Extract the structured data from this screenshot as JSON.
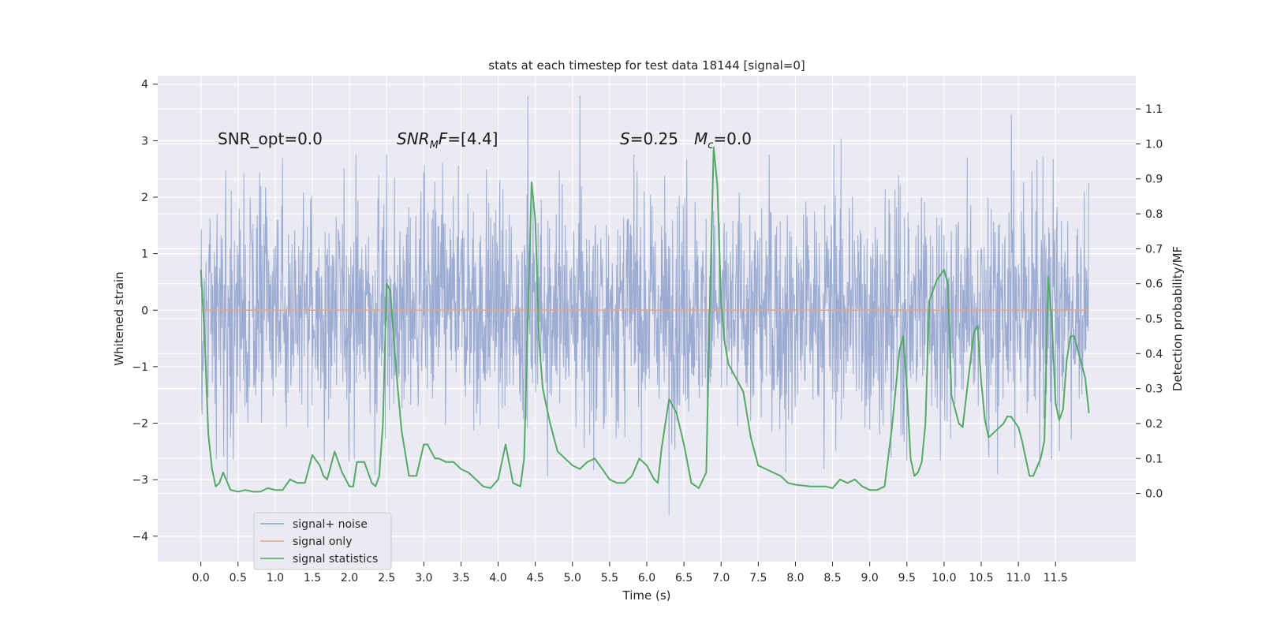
{
  "chart_data": {
    "type": "line",
    "title": "stats at each timestep for test data 18144 [signal=0]",
    "xlabel": "Time (s)",
    "ylabel": "Whitened strain",
    "ylabel_right": "Detection probability/MF",
    "xlim": [
      -0.58,
      12.58
    ],
    "ylim": [
      -4.45,
      4.15
    ],
    "ylim_right": [
      -0.195,
      1.195
    ],
    "x_ticks": [
      0.0,
      0.5,
      1.0,
      1.5,
      2.0,
      2.5,
      3.0,
      3.5,
      4.0,
      4.5,
      5.0,
      5.5,
      6.0,
      6.5,
      7.0,
      7.5,
      8.0,
      8.5,
      9.0,
      9.5,
      10.0,
      10.5,
      11.0,
      11.5
    ],
    "x_tick_labels": [
      "0.0",
      "0.5",
      "1.0",
      "1.5",
      "2.0",
      "2.5",
      "3.0",
      "3.5",
      "4.0",
      "4.5",
      "5.0",
      "5.5",
      "6.0",
      "6.5",
      "7.0",
      "7.5",
      "8.0",
      "8.5",
      "9.0",
      "9.5",
      "10.0",
      "10.5",
      "11.0",
      "11.5"
    ],
    "y_ticks": [
      -4,
      -3,
      -2,
      -1,
      0,
      1,
      2,
      3,
      4
    ],
    "y_tick_labels": [
      "−4",
      "−3",
      "−2",
      "−1",
      "0",
      "1",
      "2",
      "3",
      "4"
    ],
    "y2_ticks": [
      0.0,
      0.1,
      0.2,
      0.3,
      0.4,
      0.5,
      0.6,
      0.7,
      0.8,
      0.9,
      1.0,
      1.1
    ],
    "y2_tick_labels": [
      "0.0",
      "0.1",
      "0.2",
      "0.3",
      "0.4",
      "0.5",
      "0.6",
      "0.7",
      "0.8",
      "0.9",
      "1.0",
      "1.1"
    ],
    "grid": true,
    "legend_position": "lower-left",
    "annotations": [
      {
        "text": "SNR_opt=0.0",
        "x": 0.2,
        "y": 3.0
      },
      {
        "text": "SNR_MF=[4.4]",
        "x": 2.6,
        "y": 3.0
      },
      {
        "text": "S=0.25",
        "x": 5.6,
        "y": 3.0
      },
      {
        "text": "M_c=0.0",
        "x": 6.6,
        "y": 3.0
      }
    ],
    "series": [
      {
        "name": "signal+ noise",
        "color": "#8da0cb",
        "axis": "left",
        "t_start": 0.0,
        "t_end": 11.95,
        "sigma": 1.0,
        "y_min": -4.1,
        "y_max": 3.8
      },
      {
        "name": "signal only",
        "color": "#e5a58a",
        "axis": "left",
        "x": [
          0.0,
          11.95
        ],
        "y": [
          0.0,
          0.0
        ]
      },
      {
        "name": "signal statistics",
        "color": "#55a868",
        "axis": "right",
        "x": [
          0.0,
          0.05,
          0.1,
          0.15,
          0.2,
          0.25,
          0.3,
          0.4,
          0.5,
          0.6,
          0.7,
          0.8,
          0.9,
          1.0,
          1.1,
          1.2,
          1.3,
          1.4,
          1.5,
          1.6,
          1.65,
          1.7,
          1.8,
          1.85,
          1.9,
          2.0,
          2.05,
          2.1,
          2.2,
          2.3,
          2.35,
          2.4,
          2.45,
          2.5,
          2.55,
          2.6,
          2.65,
          2.7,
          2.8,
          2.9,
          3.0,
          3.05,
          3.1,
          3.15,
          3.2,
          3.3,
          3.4,
          3.5,
          3.6,
          3.7,
          3.8,
          3.9,
          4.0,
          4.05,
          4.1,
          4.2,
          4.3,
          4.35,
          4.4,
          4.45,
          4.5,
          4.55,
          4.6,
          4.7,
          4.8,
          4.9,
          5.0,
          5.1,
          5.2,
          5.3,
          5.4,
          5.5,
          5.6,
          5.7,
          5.8,
          5.9,
          6.0,
          6.1,
          6.15,
          6.2,
          6.3,
          6.4,
          6.5,
          6.6,
          6.7,
          6.8,
          6.85,
          6.9,
          6.95,
          7.0,
          7.05,
          7.1,
          7.2,
          7.3,
          7.4,
          7.5,
          7.6,
          7.7,
          7.8,
          7.9,
          8.0,
          8.2,
          8.4,
          8.5,
          8.6,
          8.7,
          8.8,
          8.9,
          9.0,
          9.1,
          9.2,
          9.3,
          9.4,
          9.45,
          9.5,
          9.55,
          9.6,
          9.65,
          9.7,
          9.75,
          9.8,
          9.9,
          10.0,
          10.05,
          10.1,
          10.2,
          10.25,
          10.3,
          10.4,
          10.45,
          10.5,
          10.55,
          10.6,
          10.7,
          10.8,
          10.85,
          10.9,
          11.0,
          11.05,
          11.1,
          11.15,
          11.2,
          11.3,
          11.35,
          11.4,
          11.45,
          11.5,
          11.55,
          11.6,
          11.65,
          11.7,
          11.75,
          11.8,
          11.9,
          11.95
        ],
        "y": [
          0.64,
          0.45,
          0.17,
          0.07,
          0.02,
          0.03,
          0.06,
          0.01,
          0.005,
          0.01,
          0.005,
          0.005,
          0.015,
          0.01,
          0.01,
          0.04,
          0.03,
          0.03,
          0.11,
          0.08,
          0.05,
          0.04,
          0.12,
          0.09,
          0.06,
          0.02,
          0.02,
          0.09,
          0.09,
          0.03,
          0.02,
          0.05,
          0.2,
          0.6,
          0.58,
          0.43,
          0.3,
          0.18,
          0.05,
          0.05,
          0.14,
          0.14,
          0.12,
          0.1,
          0.1,
          0.09,
          0.09,
          0.07,
          0.06,
          0.04,
          0.02,
          0.015,
          0.04,
          0.09,
          0.14,
          0.03,
          0.02,
          0.1,
          0.5,
          0.89,
          0.78,
          0.44,
          0.3,
          0.2,
          0.12,
          0.1,
          0.08,
          0.07,
          0.09,
          0.1,
          0.07,
          0.04,
          0.03,
          0.03,
          0.05,
          0.1,
          0.08,
          0.04,
          0.03,
          0.13,
          0.27,
          0.23,
          0.14,
          0.03,
          0.015,
          0.06,
          0.55,
          0.99,
          0.88,
          0.55,
          0.43,
          0.37,
          0.33,
          0.29,
          0.16,
          0.08,
          0.07,
          0.06,
          0.05,
          0.03,
          0.025,
          0.02,
          0.02,
          0.015,
          0.04,
          0.03,
          0.04,
          0.02,
          0.01,
          0.01,
          0.02,
          0.19,
          0.41,
          0.45,
          0.3,
          0.1,
          0.05,
          0.06,
          0.09,
          0.2,
          0.55,
          0.61,
          0.64,
          0.6,
          0.28,
          0.2,
          0.19,
          0.28,
          0.46,
          0.48,
          0.32,
          0.21,
          0.16,
          0.18,
          0.2,
          0.22,
          0.22,
          0.19,
          0.15,
          0.1,
          0.05,
          0.05,
          0.1,
          0.15,
          0.62,
          0.5,
          0.26,
          0.21,
          0.24,
          0.38,
          0.45,
          0.45,
          0.41,
          0.33,
          0.23
        ]
      }
    ]
  }
}
